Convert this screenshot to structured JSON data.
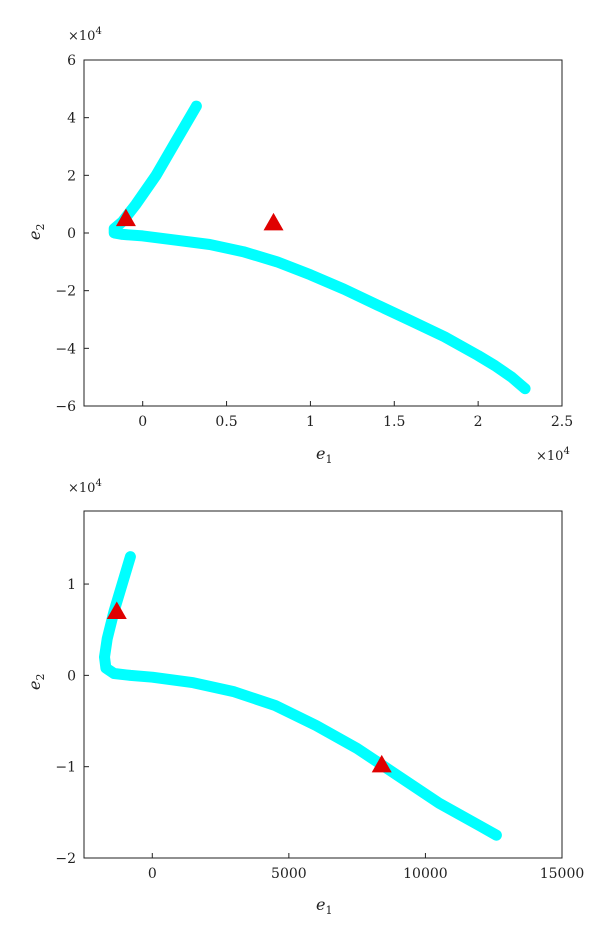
{
  "chart_data": [
    {
      "type": "scatter",
      "title": "",
      "xlabel": "e",
      "xlabel_sub": "1",
      "ylabel": "e",
      "ylabel_sub": "2",
      "x_multiplier": "×10",
      "x_multiplier_exp": "4",
      "y_multiplier": "×10",
      "y_multiplier_exp": "4",
      "xlim": [
        -0.35,
        2.5
      ],
      "ylim": [
        -6,
        6
      ],
      "xticks": [
        0,
        0.5,
        1,
        1.5,
        2,
        2.5
      ],
      "xtick_labels": [
        "0",
        "0.5",
        "1",
        "1.5",
        "2",
        "2.5"
      ],
      "yticks": [
        -6,
        -4,
        -2,
        0,
        2,
        4,
        6
      ],
      "ytick_labels": [
        "−6",
        "−4",
        "−2",
        "0",
        "2",
        "4",
        "6"
      ],
      "grid": false,
      "series": [
        {
          "color": "#00ffff",
          "marker": "dense-trajectory",
          "x": [
            0.32,
            0.2,
            0.08,
            -0.04,
            -0.12,
            -0.17,
            -0.17,
            -0.12,
            0.0,
            0.2,
            0.4,
            0.6,
            0.8,
            1.0,
            1.2,
            1.4,
            1.6,
            1.8,
            2.0,
            2.1,
            2.2,
            2.25,
            2.28
          ],
          "y": [
            4.4,
            3.2,
            2.0,
            1.0,
            0.4,
            0.15,
            0.0,
            -0.05,
            -0.1,
            -0.25,
            -0.4,
            -0.65,
            -1.0,
            -1.45,
            -1.95,
            -2.5,
            -3.05,
            -3.6,
            -4.25,
            -4.6,
            -5.0,
            -5.25,
            -5.4
          ]
        },
        {
          "color": "#e00000",
          "marker": "triangle",
          "x": [
            -0.1,
            0.78
          ],
          "y": [
            0.5,
            0.35
          ]
        }
      ]
    },
    {
      "type": "scatter",
      "title": "",
      "xlabel": "e",
      "xlabel_sub": "1",
      "ylabel": "e",
      "ylabel_sub": "2",
      "y_multiplier": "×10",
      "y_multiplier_exp": "4",
      "xlim": [
        -2500,
        15000
      ],
      "ylim": [
        -2,
        1.8
      ],
      "xticks": [
        0,
        5000,
        10000,
        15000
      ],
      "xtick_labels": [
        "0",
        "5000",
        "10000",
        "15000"
      ],
      "yticks": [
        -2,
        -1,
        0,
        1
      ],
      "ytick_labels": [
        "−2",
        "−1",
        "0",
        "1"
      ],
      "grid": false,
      "series": [
        {
          "color": "#00ffff",
          "marker": "dense-trajectory",
          "x": [
            -800,
            -1100,
            -1400,
            -1650,
            -1750,
            -1700,
            -1400,
            -800,
            0,
            1500,
            3000,
            4500,
            6000,
            7500,
            9000,
            10500,
            12000,
            12600
          ],
          "y": [
            1.3,
            1.0,
            0.7,
            0.4,
            0.2,
            0.08,
            0.02,
            0.0,
            -0.02,
            -0.08,
            -0.18,
            -0.33,
            -0.55,
            -0.8,
            -1.1,
            -1.4,
            -1.65,
            -1.75
          ]
        },
        {
          "color": "#e00000",
          "marker": "triangle",
          "x": [
            -1300,
            8400
          ],
          "y": [
            0.7,
            -0.98
          ]
        }
      ]
    }
  ]
}
